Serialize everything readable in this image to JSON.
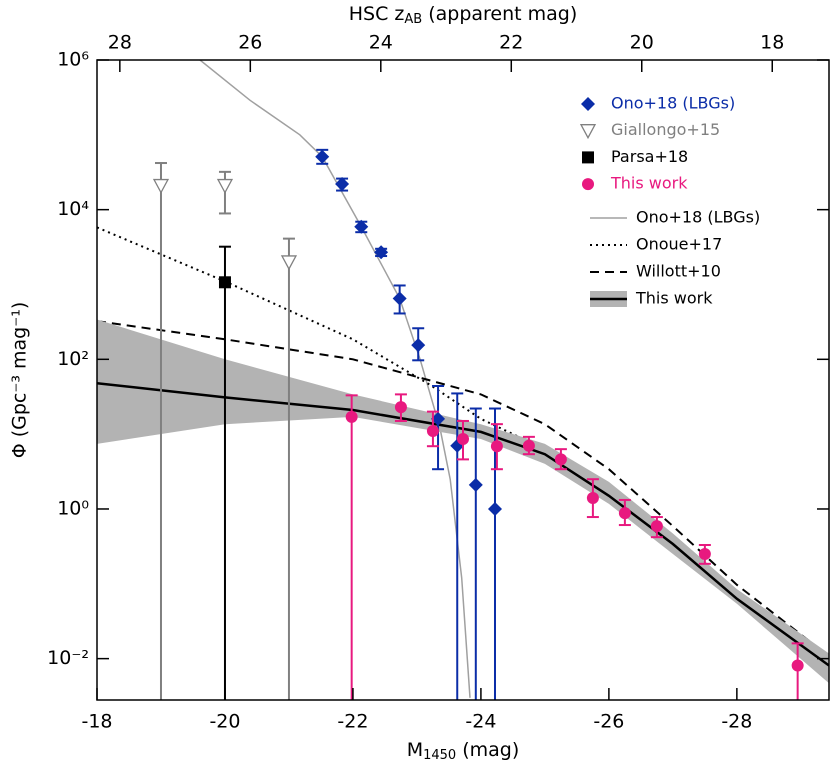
{
  "chart_data": {
    "type": "scatter",
    "x_label": {
      "main": "M",
      "sub": "1450",
      "rest": " (mag)"
    },
    "x2_label": {
      "main": "HSC z",
      "sub": "AB",
      "rest": " (apparent mag)"
    },
    "y_label": "Φ (Gpc⁻³ mag⁻¹)",
    "xlim": [
      -18,
      -29.44
    ],
    "xticks": [
      -18,
      -20,
      -22,
      -24,
      -26,
      -28
    ],
    "x2lim": [
      28.35,
      17.13
    ],
    "x2ticks": [
      28,
      26,
      24,
      22,
      20,
      18
    ],
    "ylim": [
      0.0028,
      1000000
    ],
    "yscale": "log",
    "yticks": [
      {
        "value": 1000000,
        "label": "10⁶"
      },
      {
        "value": 10000,
        "label": "10⁴"
      },
      {
        "value": 100,
        "label": "10²"
      },
      {
        "value": 1,
        "label": "10⁰"
      },
      {
        "value": 0.01,
        "label": "10⁻²"
      }
    ],
    "legend": "upper right",
    "series": [
      {
        "name": "Ono+18 (LBGs)",
        "kind": "points",
        "marker": "diamond",
        "color": "#0b2da8",
        "x": [
          -21.52,
          -21.83,
          -22.13,
          -22.44,
          -22.73,
          -23.02,
          -23.33,
          -23.63,
          -23.92,
          -24.22
        ],
        "values": [
          51000,
          22000,
          5900,
          2700,
          650,
          155,
          16,
          7,
          2.1,
          1.0
        ],
        "upper": [
          63000,
          26000,
          6900,
          3000,
          970,
          260,
          44,
          35,
          22,
          22
        ],
        "lower": [
          41000,
          18000,
          5000,
          2400,
          410,
          97,
          3.4,
          0.001,
          0.001,
          0.001
        ]
      },
      {
        "name": "Giallongo+15",
        "kind": "points",
        "marker": "triangle",
        "color": "#808080",
        "x": [
          -19.0,
          -20.0,
          -21.0
        ],
        "values": [
          21000,
          21000,
          2000
        ],
        "upper": [
          42000,
          32000,
          4100
        ],
        "lower": [
          0.001,
          8900,
          0.001
        ]
      },
      {
        "name": "Parsa+18",
        "kind": "points",
        "marker": "square",
        "color": "#000000",
        "x": [
          -20.0
        ],
        "values": [
          1070
        ],
        "upper": [
          3200
        ],
        "lower": [
          0.001
        ]
      },
      {
        "name": "This work",
        "kind": "points",
        "marker": "circle",
        "color": "#e8197f",
        "x": [
          -21.98,
          -22.75,
          -23.25,
          -23.72,
          -24.25,
          -24.75,
          -25.25,
          -25.75,
          -26.25,
          -26.75,
          -27.5,
          -28.95
        ],
        "values": [
          17,
          23,
          11,
          8.6,
          6.9,
          7.0,
          4.6,
          1.4,
          0.88,
          0.59,
          0.25,
          0.0081
        ],
        "upper": [
          33,
          34,
          20,
          15,
          13.6,
          9.2,
          6.3,
          2.5,
          1.32,
          0.78,
          0.33,
          0.016
        ],
        "lower": [
          0.001,
          15,
          6.9,
          4.6,
          3.4,
          5.4,
          3.4,
          0.78,
          0.61,
          0.42,
          0.185,
          0.001
        ]
      },
      {
        "name": "Ono+18 (LBGs)",
        "kind": "line",
        "dash": "none",
        "width": 1.5,
        "color": "#a0a0a0",
        "x": [
          -19.61,
          -20.39,
          -21.17,
          -21.52,
          -22.13,
          -22.73,
          -23.05,
          -23.36,
          -23.52,
          -23.7,
          -23.83
        ],
        "values": [
          1000000,
          290000,
          100000,
          51000,
          5900,
          650,
          100,
          12,
          2.5,
          0.12,
          0.003
        ]
      },
      {
        "name": "Onoue+17",
        "kind": "line",
        "dash": "2 4",
        "width": 2,
        "color": "#000000",
        "x": [
          -18,
          -20,
          -22,
          -23.2,
          -24,
          -25,
          -26,
          -27,
          -28,
          -29.44
        ],
        "values": [
          5800,
          1100,
          185,
          46,
          16,
          6.3,
          1.5,
          0.34,
          0.074,
          0.0089
        ]
      },
      {
        "name": "Willott+10",
        "kind": "line",
        "dash": "9 6",
        "width": 2,
        "color": "#000000",
        "x": [
          -18,
          -20,
          -22,
          -24,
          -25,
          -26,
          -27,
          -28,
          -29.44
        ],
        "values": [
          324,
          185,
          100,
          34,
          13.6,
          3.4,
          0.59,
          0.097,
          0.0107
        ]
      },
      {
        "name": "This work",
        "kind": "line",
        "dash": "none",
        "width": 2.5,
        "color": "#000000",
        "band_color": "#b3b3b3",
        "x": [
          -18,
          -20,
          -22,
          -24,
          -25,
          -26,
          -27,
          -28,
          -29.44
        ],
        "values": [
          48,
          31,
          21,
          10.7,
          5.4,
          1.5,
          0.34,
          0.063,
          0.0081
        ],
        "band_upper": [
          340,
          100,
          34,
          13.6,
          7.4,
          2.3,
          0.47,
          0.085,
          0.0117
        ],
        "band_lower": [
          7.4,
          13.6,
          17,
          8.6,
          4,
          1.17,
          0.25,
          0.054,
          0.0047
        ]
      }
    ]
  }
}
